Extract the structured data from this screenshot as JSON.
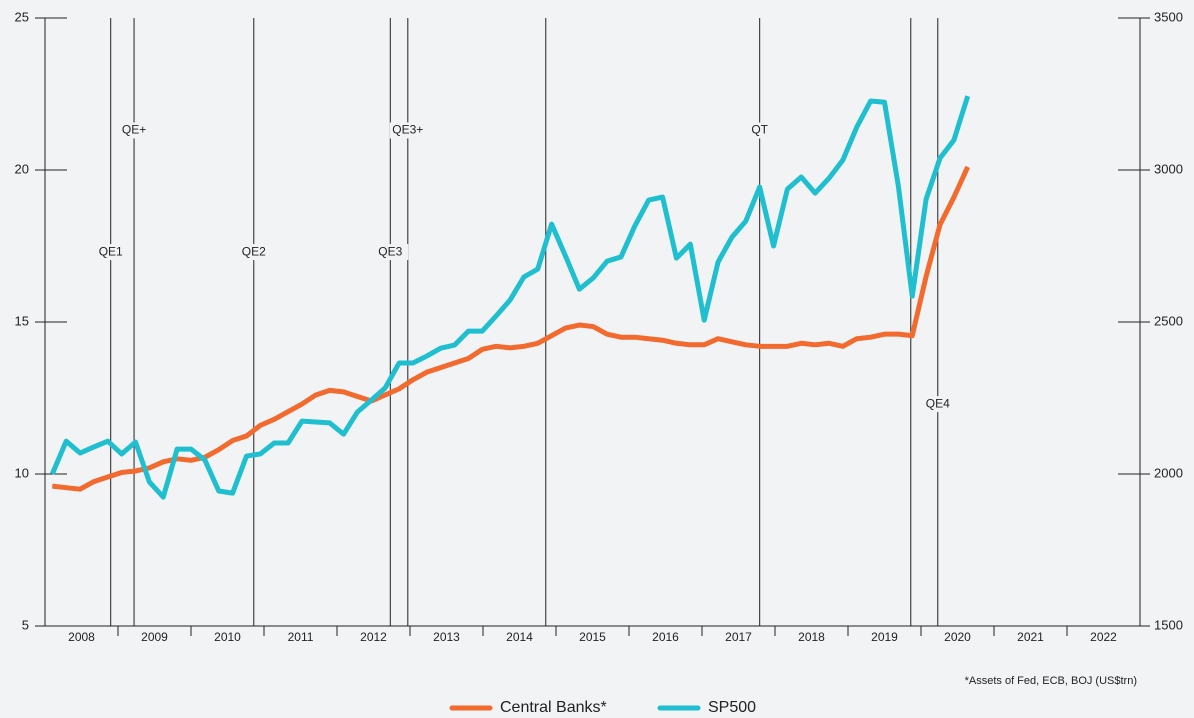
{
  "chart_data": {
    "type": "line",
    "categories": [
      "2008",
      "2009",
      "2010",
      "2011",
      "2012",
      "2013",
      "2014",
      "2015",
      "2016",
      "2017",
      "2018",
      "2019",
      "2020",
      "2021",
      "2022"
    ],
    "xlim": [
      2008,
      2023
    ],
    "x": [
      2008.1,
      2008.29,
      2008.48,
      2008.67,
      2008.86,
      2009.05,
      2009.24,
      2009.43,
      2009.62,
      2009.81,
      2010.0,
      2010.19,
      2010.38,
      2010.57,
      2010.76,
      2010.95,
      2011.14,
      2011.33,
      2011.52,
      2011.71,
      2011.9,
      2012.09,
      2012.28,
      2012.47,
      2012.66,
      2012.85,
      2013.04,
      2013.23,
      2013.42,
      2013.61,
      2013.8,
      2013.99,
      2014.18,
      2014.37,
      2014.56,
      2014.75,
      2014.94,
      2015.13,
      2015.32,
      2015.51,
      2015.7,
      2015.89,
      2016.08,
      2016.27,
      2016.46,
      2016.65,
      2016.84,
      2017.03,
      2017.22,
      2017.41,
      2017.6,
      2017.79,
      2017.98,
      2018.17,
      2018.36,
      2018.55,
      2018.74,
      2018.93,
      2019.12,
      2019.31,
      2019.5,
      2019.69,
      2019.88,
      2020.07,
      2020.26,
      2020.45,
      2020.64
    ],
    "ylim": [
      5,
      25
    ],
    "yticks": [
      5,
      10,
      15,
      20,
      25
    ],
    "y2lim": [
      1500,
      3500
    ],
    "y2ticks": [
      1500,
      2000,
      2500,
      3000,
      3500
    ],
    "series": [
      {
        "name": "Central Banks*",
        "color": "#f26a2e",
        "values": [
          9.6,
          9.55,
          9.5,
          9.75,
          9.9,
          10.05,
          10.1,
          10.2,
          10.4,
          10.5,
          10.45,
          10.55,
          10.8,
          11.1,
          11.25,
          11.6,
          11.8,
          12.05,
          12.3,
          12.6,
          12.75,
          12.7,
          12.55,
          12.4,
          12.6,
          12.8,
          13.1,
          13.35,
          13.5,
          13.65,
          13.8,
          14.1,
          14.2,
          14.15,
          14.2,
          14.3,
          14.55,
          14.8,
          14.9,
          14.85,
          14.6,
          14.5,
          14.5,
          14.45,
          14.4,
          14.3,
          14.25,
          14.25,
          14.45,
          14.35,
          14.25,
          14.2,
          14.2,
          14.2,
          14.3,
          14.25,
          14.3,
          14.2,
          14.45,
          14.5,
          14.6,
          14.6,
          14.55,
          16.5,
          18.2,
          19.1,
          20.1
        ]
      },
      {
        "name": "SP500",
        "color": "#1fbfcf",
        "axis": "y2",
        "values": [
          2000,
          2108,
          2069,
          2089,
          2108,
          2066,
          2105,
          1974,
          1924,
          2082,
          2082,
          2046,
          1944,
          1937,
          2059,
          2066,
          2102,
          2102,
          2174,
          2171,
          2168,
          2131,
          2204,
          2243,
          2283,
          2365,
          2365,
          2388,
          2414,
          2424,
          2470,
          2470,
          2520,
          2572,
          2648,
          2674,
          2822,
          2717,
          2608,
          2645,
          2700,
          2714,
          2816,
          2901,
          2911,
          2710,
          2756,
          2506,
          2697,
          2779,
          2832,
          2944,
          2750,
          2937,
          2977,
          2924,
          2973,
          3033,
          3141,
          3227,
          3223,
          2947,
          2585,
          2904,
          3039,
          3098,
          3243
        ]
      }
    ],
    "event_lines": [
      2008.9,
      2009.22,
      2010.86,
      2012.73,
      2012.97,
      2014.86,
      2017.79,
      2019.86,
      2020.23
    ],
    "annotations": [
      {
        "text": "QE1",
        "x": 2008.9,
        "y": 17.3
      },
      {
        "text": "QE+",
        "x": 2009.22,
        "y": 21.3
      },
      {
        "text": "QE2",
        "x": 2010.86,
        "y": 17.3
      },
      {
        "text": "QE3",
        "x": 2012.73,
        "y": 17.3
      },
      {
        "text": "QE3+",
        "x": 2012.97,
        "y": 21.3
      },
      {
        "text": "QT",
        "x": 2017.79,
        "y": 21.3
      },
      {
        "text": "QE4",
        "x": 2020.23,
        "y": 12.3
      }
    ],
    "footnote": "*Assets of Fed, ECB, BOJ (US$trn)"
  }
}
